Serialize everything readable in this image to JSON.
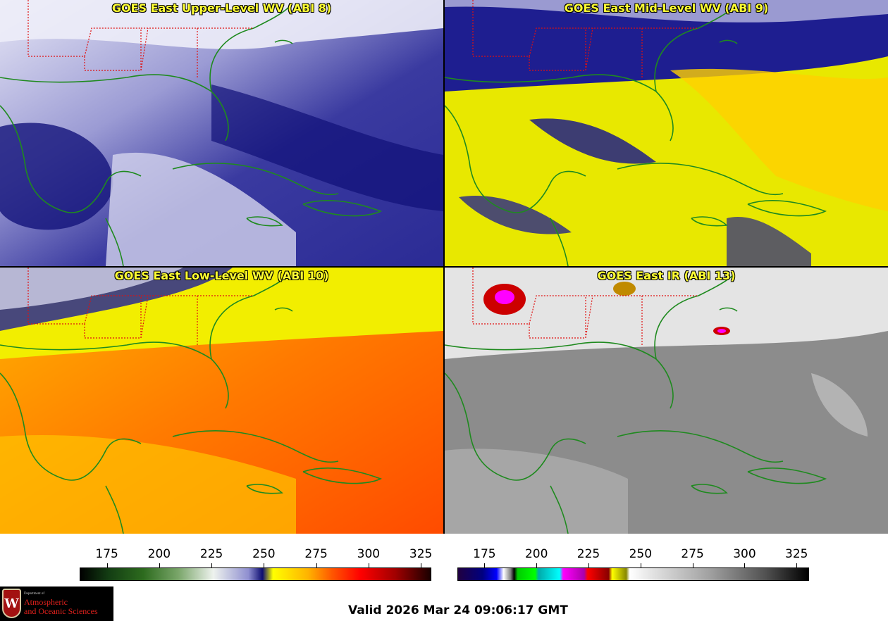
{
  "panels": [
    {
      "title": "GOES East Upper-Level WV (ABI 8)",
      "scheme": "upper"
    },
    {
      "title": "GOES East Mid-Level WV (ABI 9)",
      "scheme": "mid"
    },
    {
      "title": "GOES East Low-Level WV (ABI 10)",
      "scheme": "low"
    },
    {
      "title": "GOES East IR (ABI 13)",
      "scheme": "ir"
    }
  ],
  "colorbars": [
    {
      "name": "water-vapor",
      "ticks": [
        "175",
        "200",
        "225",
        "250",
        "275",
        "300",
        "325"
      ],
      "range": [
        162,
        330
      ]
    },
    {
      "name": "infrared",
      "ticks": [
        "175",
        "200",
        "225",
        "250",
        "275",
        "300",
        "325"
      ],
      "range": [
        162,
        331
      ]
    }
  ],
  "valid_time": "Valid 2026 Mar 24 09:06:17 GMT",
  "logo": {
    "dept": "Department of",
    "line1": "Atmospheric",
    "line2": "and Oceanic Sciences"
  },
  "colors": {
    "coast": "#1f8a1f",
    "state_border": "#e01010",
    "title": "#ffff33"
  }
}
